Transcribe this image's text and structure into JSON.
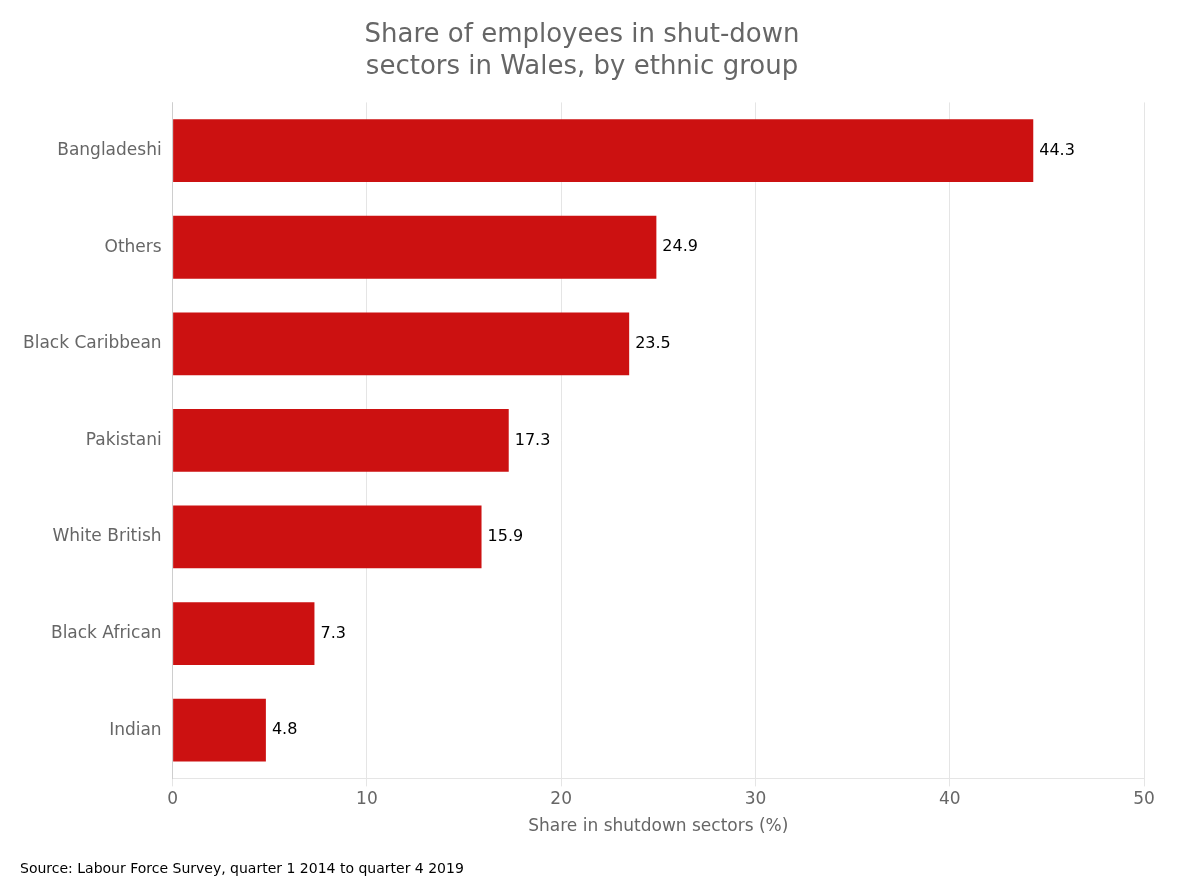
{
  "chart_data": {
    "type": "bar",
    "orientation": "horizontal",
    "title": "Share of employees in shut-down\nsectors in Wales, by ethnic group",
    "categories": [
      "Indian",
      "Black African",
      "White British",
      "Pakistani",
      "Black Caribbean",
      "Others",
      "Bangladeshi"
    ],
    "values": [
      4.8,
      7.3,
      15.9,
      17.3,
      23.5,
      24.9,
      44.3
    ],
    "color": "#cc1111",
    "xlabel": "Share in shutdown sectors (%)",
    "xlim": [
      0,
      50
    ],
    "xticks": [
      0,
      10,
      20,
      30,
      40,
      50
    ],
    "grid": true,
    "data_labels": true,
    "annotation": "Source: Labour Force Survey, quarter 1 2014 to quarter 4 2019"
  }
}
